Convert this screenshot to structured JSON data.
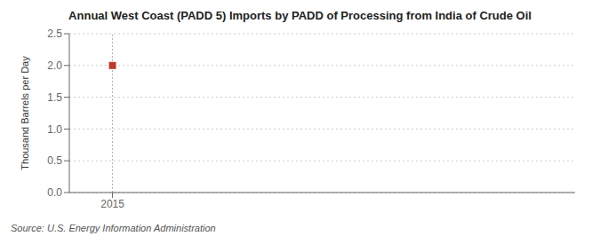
{
  "chart_data": {
    "type": "scatter",
    "title": "Annual West Coast (PADD 5) Imports by PADD of Processing from India of Crude Oil",
    "y_label": "Thousand Barrels per Day",
    "annotations": [
      "Source: U.S. Energy Information Administration"
    ],
    "x": [
      2015
    ],
    "values": [
      2.0
    ],
    "color": "#c0392b",
    "marker": "square",
    "xlim": [
      2014.3,
      2022.5
    ],
    "ylim": [
      0.0,
      2.5
    ],
    "xticks": [
      2015
    ],
    "yticks": [
      {
        "value": 0.0,
        "label": "0.0"
      },
      0.5,
      {
        "value": 1.0,
        "label": "1.0"
      },
      1.5,
      {
        "value": 2.0,
        "label": "2.0"
      },
      2.5
    ],
    "grid": "y"
  }
}
